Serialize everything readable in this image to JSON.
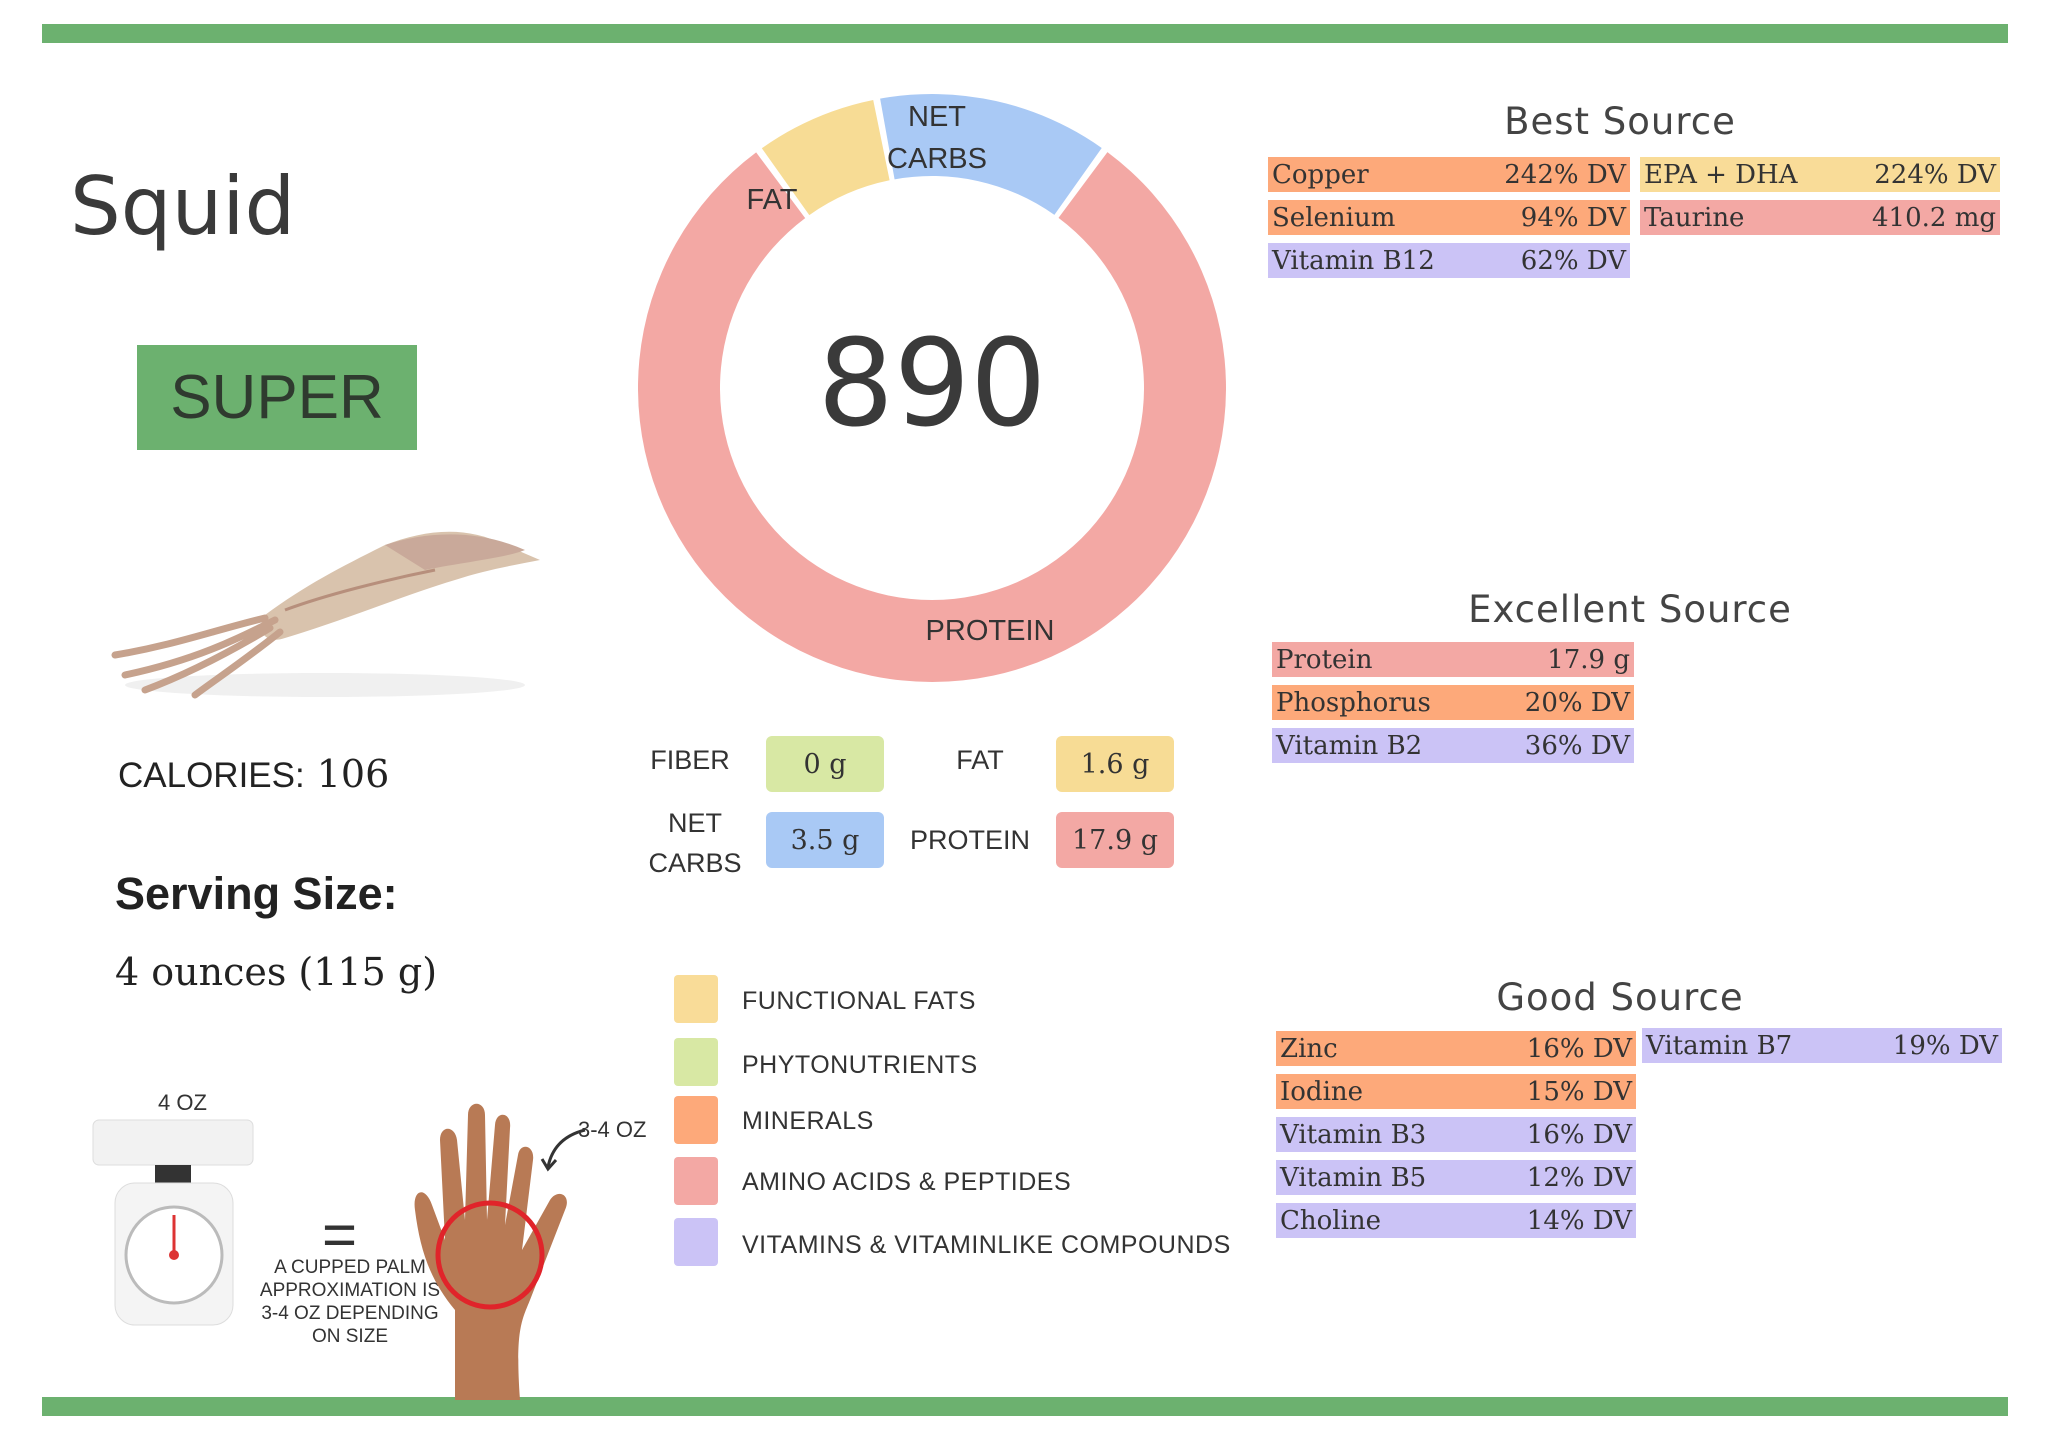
{
  "food": {
    "name": "Squid",
    "rating": "SUPER",
    "calories_label": "CALORIES:",
    "calories_value": "106",
    "serving_label": "Serving Size:",
    "serving_value": "4 ounces (115 g)"
  },
  "donut": {
    "center_value": "890",
    "segments": [
      {
        "label": "FAT",
        "fraction": 0.07,
        "color": "#f7dc95"
      },
      {
        "label": "NET CARBS",
        "fraction": 0.13,
        "color": "#a9c9f5"
      },
      {
        "label": "PROTEIN",
        "fraction": 0.8,
        "color": "#f3a8a4"
      }
    ],
    "fat_label": "FAT",
    "net_label_1": "NET",
    "net_label_2": "CARBS",
    "protein_label": "PROTEIN"
  },
  "macros": {
    "fiber_label": "FIBER",
    "fiber_value": "0 g",
    "fat_label": "FAT",
    "fat_value": "1.6 g",
    "netcarbs_label_1": "NET",
    "netcarbs_label_2": "CARBS",
    "netcarbs_value": "3.5 g",
    "protein_label": "PROTEIN",
    "protein_value": "17.9 g"
  },
  "legend": [
    {
      "label": "FUNCTIONAL  FATS",
      "color": "#f9dc98"
    },
    {
      "label": "PHYTONUTRIENTS",
      "color": "#d8e8a4"
    },
    {
      "label": "MINERALS",
      "color": "#fda97a"
    },
    {
      "label": "AMINO ACIDS & PEPTIDES",
      "color": "#f3a8a4"
    },
    {
      "label": "VITAMINS & VITAMINLIKE COMPOUNDS",
      "color": "#cbc3f6"
    }
  ],
  "best_source": {
    "title": "Best Source",
    "left": [
      {
        "name": "Copper",
        "value": "242% DV",
        "color": "#fda97a"
      },
      {
        "name": "Selenium",
        "value": "94% DV",
        "color": "#fda97a"
      },
      {
        "name": "Vitamin B12",
        "value": "62% DV",
        "color": "#cbc3f6"
      }
    ],
    "right": [
      {
        "name": "EPA + DHA",
        "value": "224% DV",
        "color": "#f9dc98"
      },
      {
        "name": "Taurine",
        "value": "410.2 mg",
        "color": "#f3a8a4"
      }
    ]
  },
  "excellent_source": {
    "title": "Excellent Source",
    "left": [
      {
        "name": "Protein",
        "value": "17.9 g",
        "color": "#f3a8a4"
      },
      {
        "name": "Phosphorus",
        "value": "20% DV",
        "color": "#fda97a"
      },
      {
        "name": "Vitamin B2",
        "value": "36% DV",
        "color": "#cbc3f6"
      }
    ]
  },
  "good_source": {
    "title": "Good Source",
    "left": [
      {
        "name": "Zinc",
        "value": "16% DV",
        "color": "#fda97a"
      },
      {
        "name": "Iodine",
        "value": "15% DV",
        "color": "#fda97a"
      },
      {
        "name": "Vitamin B3",
        "value": "16% DV",
        "color": "#cbc3f6"
      },
      {
        "name": "Vitamin B5",
        "value": "12% DV",
        "color": "#cbc3f6"
      },
      {
        "name": "Choline",
        "value": "14% DV",
        "color": "#cbc3f6"
      }
    ],
    "right": [
      {
        "name": "Vitamin B7",
        "value": "19% DV",
        "color": "#cbc3f6"
      }
    ]
  },
  "portion": {
    "scale_label": "4 OZ",
    "equals": "=",
    "palm_label": "3-4 OZ",
    "caption_1": "A CUPPED PALM",
    "caption_2": "APPROXIMATION IS",
    "caption_3": "3-4 OZ DEPENDING",
    "caption_4": "ON SIZE"
  }
}
